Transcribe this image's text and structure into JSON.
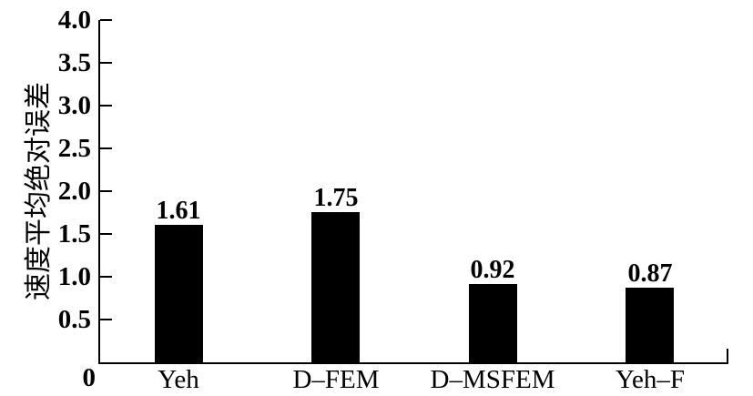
{
  "figure": {
    "background": "#ffffff"
  },
  "chart_data": {
    "type": "bar",
    "title": "",
    "xlabel": "",
    "ylabel": "速度平均绝对误差",
    "categories": [
      "Yeh",
      "D–FEM",
      "D–MSFEM",
      "Yeh–F"
    ],
    "values": [
      1.61,
      1.75,
      0.92,
      0.87
    ],
    "value_labels": [
      "1.61",
      "1.75",
      "0.92",
      "0.87"
    ],
    "ylim": [
      0,
      4.0
    ],
    "ytick_step": 0.5,
    "yticks": [
      0,
      0.5,
      1.0,
      1.5,
      2.0,
      2.5,
      3.0,
      3.5,
      4.0
    ],
    "ytick_labels": [
      "0",
      "0.5",
      "1.0",
      "1.5",
      "2.0",
      "2.5",
      "3.0",
      "3.5",
      "4.0"
    ],
    "grid": false,
    "legend": null,
    "bar_color": "#000000",
    "axis_color": "#000000",
    "text_color": "#000000",
    "background_color": "#ffffff"
  }
}
